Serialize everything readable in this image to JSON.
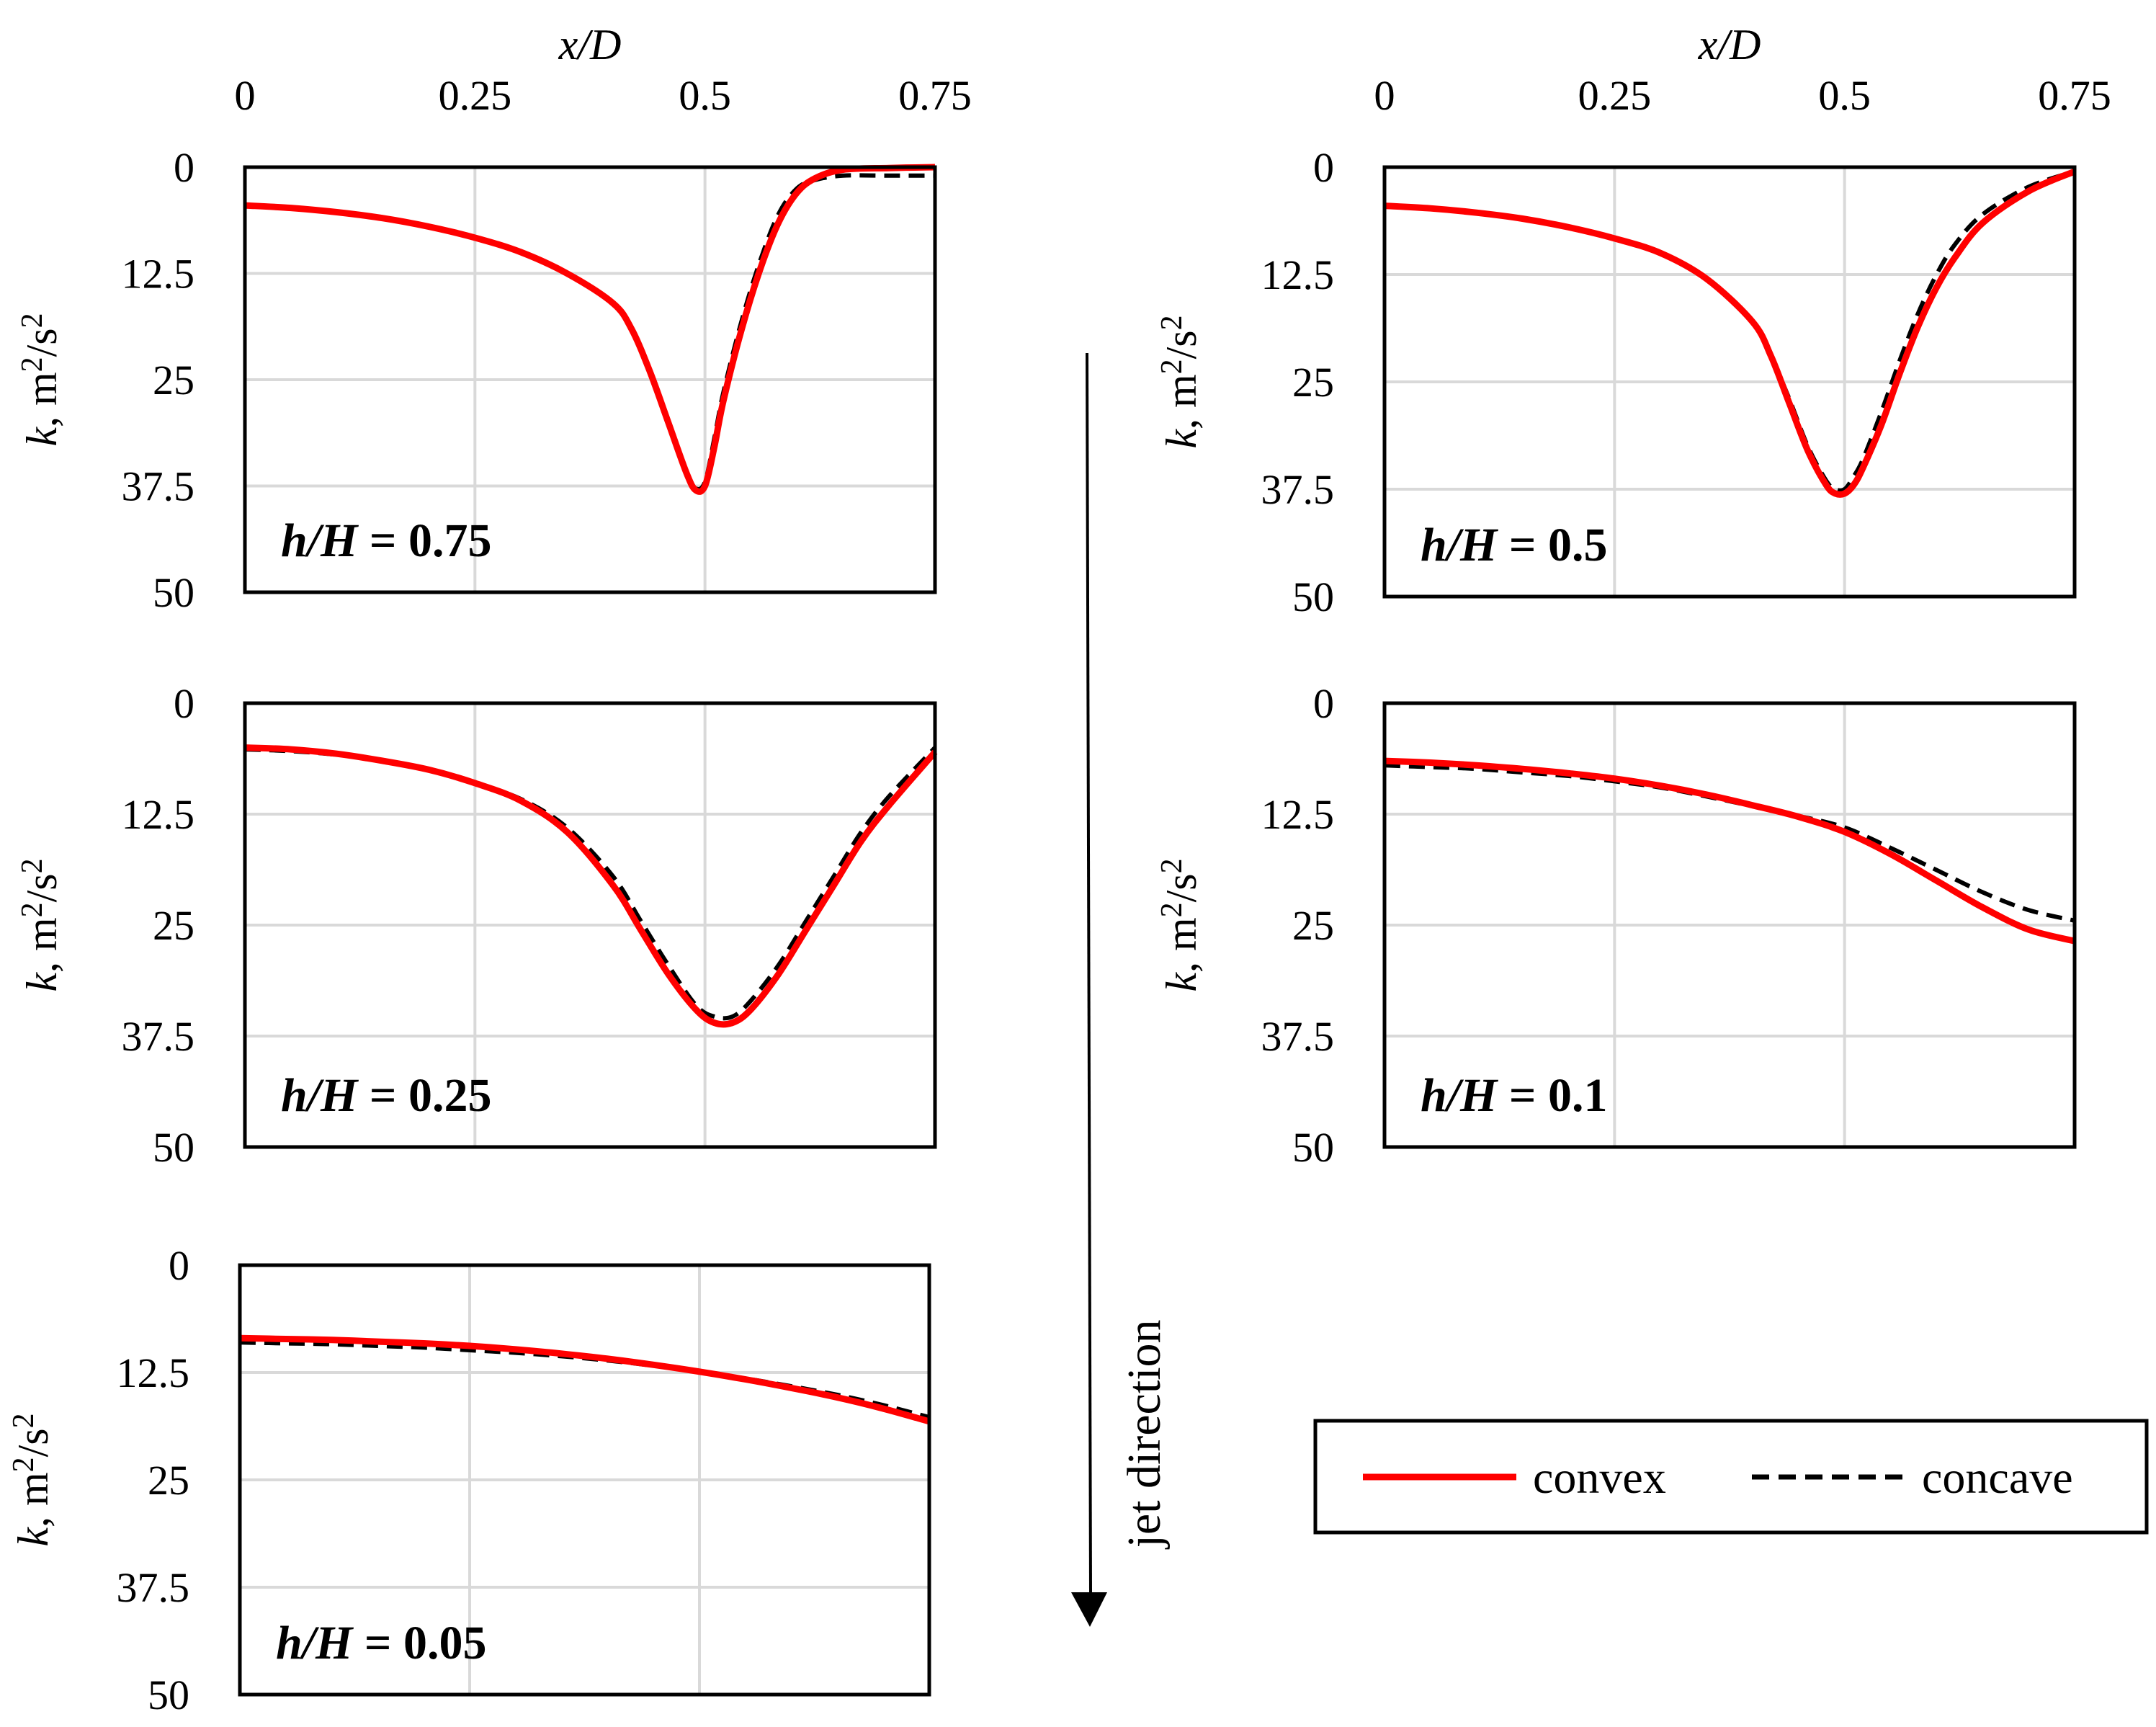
{
  "chart_data": [
    {
      "type": "line",
      "title": "h/H = 0.75",
      "label_italic": "h/H",
      "label_value": "= 0.75",
      "xlabel": "x/D",
      "ylabel": "k, m²/s²",
      "xlim": [
        0,
        0.75
      ],
      "ylim": [
        0,
        50
      ],
      "y_inverted": true,
      "x_ticks": [
        "0",
        "0.25",
        "0.5",
        "0.75"
      ],
      "y_ticks": [
        "0",
        "12.5",
        "25",
        "37.5",
        "50"
      ],
      "x": [
        0,
        0.05,
        0.1,
        0.15,
        0.2,
        0.25,
        0.3,
        0.35,
        0.4,
        0.42,
        0.44,
        0.46,
        0.48,
        0.49,
        0.5,
        0.51,
        0.52,
        0.54,
        0.56,
        0.58,
        0.6,
        0.62,
        0.65,
        0.7,
        0.75
      ],
      "series": [
        {
          "name": "convex",
          "values": [
            4.5,
            4.8,
            5.3,
            6.0,
            7.0,
            8.3,
            10.0,
            12.5,
            16.0,
            19.0,
            24.0,
            30.0,
            36.0,
            38.0,
            37.5,
            33.0,
            27.5,
            19.0,
            12.0,
            6.5,
            3.0,
            1.3,
            0.3,
            0.1,
            0.0
          ]
        },
        {
          "name": "concave",
          "values": [
            4.5,
            4.8,
            5.3,
            6.0,
            7.0,
            8.3,
            10.0,
            12.5,
            16.0,
            19.0,
            24.0,
            30.0,
            36.0,
            37.8,
            37.0,
            32.0,
            26.5,
            18.0,
            11.0,
            5.5,
            2.5,
            1.5,
            1.0,
            1.0,
            1.0
          ]
        }
      ]
    },
    {
      "type": "line",
      "title": "h/H = 0.5",
      "label_italic": "h/H",
      "label_value": "= 0.5",
      "xlabel": "x/D",
      "ylabel": "k, m²/s²",
      "xlim": [
        0,
        0.75
      ],
      "ylim": [
        0,
        50
      ],
      "y_inverted": true,
      "x_ticks": [
        "0",
        "0.25",
        "0.5",
        "0.75"
      ],
      "y_ticks": [
        "0",
        "12.5",
        "25",
        "37.5",
        "50"
      ],
      "x": [
        0,
        0.05,
        0.1,
        0.15,
        0.2,
        0.25,
        0.3,
        0.35,
        0.4,
        0.42,
        0.44,
        0.46,
        0.48,
        0.49,
        0.5,
        0.51,
        0.52,
        0.54,
        0.56,
        0.58,
        0.6,
        0.62,
        0.65,
        0.7,
        0.75
      ],
      "series": [
        {
          "name": "convex",
          "values": [
            4.5,
            4.8,
            5.3,
            6.0,
            7.0,
            8.3,
            10.0,
            13.0,
            18.0,
            22.0,
            27.5,
            33.0,
            37.0,
            38.0,
            38.0,
            37.0,
            35.0,
            30.0,
            24.0,
            18.5,
            14.0,
            10.5,
            6.5,
            2.8,
            0.5
          ]
        },
        {
          "name": "concave",
          "values": [
            4.5,
            4.8,
            5.3,
            6.0,
            7.0,
            8.3,
            10.0,
            13.0,
            18.0,
            22.0,
            27.0,
            32.5,
            36.5,
            37.5,
            37.5,
            36.0,
            34.0,
            28.5,
            22.5,
            17.0,
            12.5,
            9.0,
            5.5,
            2.3,
            0.5
          ]
        }
      ]
    },
    {
      "type": "line",
      "title": "h/H = 0.25",
      "label_italic": "h/H",
      "label_value": "= 0.25",
      "xlabel": "x/D",
      "ylabel": "k, m²/s²",
      "xlim": [
        0,
        0.75
      ],
      "ylim": [
        0,
        50
      ],
      "y_inverted": true,
      "x_ticks": [
        "0",
        "0.25",
        "0.5",
        "0.75"
      ],
      "y_ticks": [
        "0",
        "12.5",
        "25",
        "37.5",
        "50"
      ],
      "x": [
        0,
        0.05,
        0.1,
        0.15,
        0.2,
        0.25,
        0.3,
        0.35,
        0.4,
        0.43,
        0.46,
        0.49,
        0.51,
        0.53,
        0.55,
        0.58,
        0.61,
        0.64,
        0.67,
        0.7,
        0.75
      ],
      "series": [
        {
          "name": "convex",
          "values": [
            5.0,
            5.2,
            5.7,
            6.5,
            7.5,
            9.0,
            11.0,
            14.5,
            20.5,
            25.5,
            30.5,
            34.5,
            36.0,
            36.0,
            34.5,
            30.5,
            25.5,
            20.5,
            15.5,
            11.5,
            5.5
          ]
        },
        {
          "name": "concave",
          "values": [
            5.2,
            5.4,
            5.8,
            6.5,
            7.5,
            9.0,
            10.8,
            14.0,
            19.5,
            24.5,
            29.5,
            34.0,
            35.3,
            35.3,
            33.5,
            29.5,
            24.5,
            19.5,
            14.5,
            10.5,
            5.0
          ]
        }
      ]
    },
    {
      "type": "line",
      "title": "h/H = 0.1",
      "label_italic": "h/H",
      "label_value": "= 0.1",
      "xlabel": "x/D",
      "ylabel": "k, m²/s²",
      "xlim": [
        0,
        0.75
      ],
      "ylim": [
        0,
        50
      ],
      "y_inverted": true,
      "x_ticks": [
        "0",
        "0.25",
        "0.5",
        "0.75"
      ],
      "y_ticks": [
        "0",
        "12.5",
        "25",
        "37.5",
        "50"
      ],
      "x": [
        0,
        0.05,
        0.1,
        0.15,
        0.2,
        0.25,
        0.3,
        0.35,
        0.4,
        0.45,
        0.5,
        0.55,
        0.6,
        0.65,
        0.7,
        0.75
      ],
      "series": [
        {
          "name": "convex",
          "values": [
            6.5,
            6.7,
            7.0,
            7.4,
            7.9,
            8.5,
            9.3,
            10.3,
            11.5,
            12.8,
            14.5,
            17.0,
            20.0,
            23.0,
            25.5,
            26.8
          ]
        },
        {
          "name": "concave",
          "values": [
            7.0,
            7.2,
            7.4,
            7.8,
            8.2,
            8.8,
            9.5,
            10.5,
            11.6,
            12.7,
            14.0,
            16.3,
            18.8,
            21.3,
            23.3,
            24.5
          ]
        }
      ]
    },
    {
      "type": "line",
      "title": "h/H = 0.05",
      "label_italic": "h/H",
      "label_value": "= 0.05",
      "xlabel": "",
      "ylabel": "k, m²/s²",
      "xlim": [
        0,
        0.75
      ],
      "ylim": [
        0,
        50
      ],
      "y_inverted": true,
      "x_ticks": [],
      "y_ticks": [
        "0",
        "12.5",
        "25",
        "37.5",
        "50"
      ],
      "x": [
        0,
        0.05,
        0.1,
        0.15,
        0.2,
        0.25,
        0.3,
        0.35,
        0.4,
        0.45,
        0.5,
        0.55,
        0.6,
        0.65,
        0.7,
        0.75
      ],
      "series": [
        {
          "name": "convex",
          "values": [
            8.5,
            8.6,
            8.7,
            8.9,
            9.1,
            9.4,
            9.8,
            10.3,
            10.9,
            11.6,
            12.4,
            13.3,
            14.3,
            15.4,
            16.7,
            18.2
          ]
        },
        {
          "name": "concave",
          "values": [
            9.0,
            9.1,
            9.2,
            9.4,
            9.6,
            9.9,
            10.2,
            10.6,
            11.1,
            11.7,
            12.4,
            13.2,
            14.1,
            15.1,
            16.3,
            17.7
          ]
        }
      ]
    }
  ],
  "legend": {
    "items": [
      {
        "name": "convex",
        "color": "#ff0000",
        "style": "solid"
      },
      {
        "name": "concave",
        "color": "#000000",
        "style": "dashed"
      }
    ]
  },
  "annotation": {
    "jet_direction": "jet direction"
  },
  "axis_labels": {
    "y_italic": "k",
    "y_units": ", m",
    "y_sup": "2",
    "y_mid": "/s",
    "y_sup2": "2"
  },
  "colors": {
    "convex": "#ff0000",
    "concave": "#000000",
    "grid": "#d9d9d9"
  }
}
